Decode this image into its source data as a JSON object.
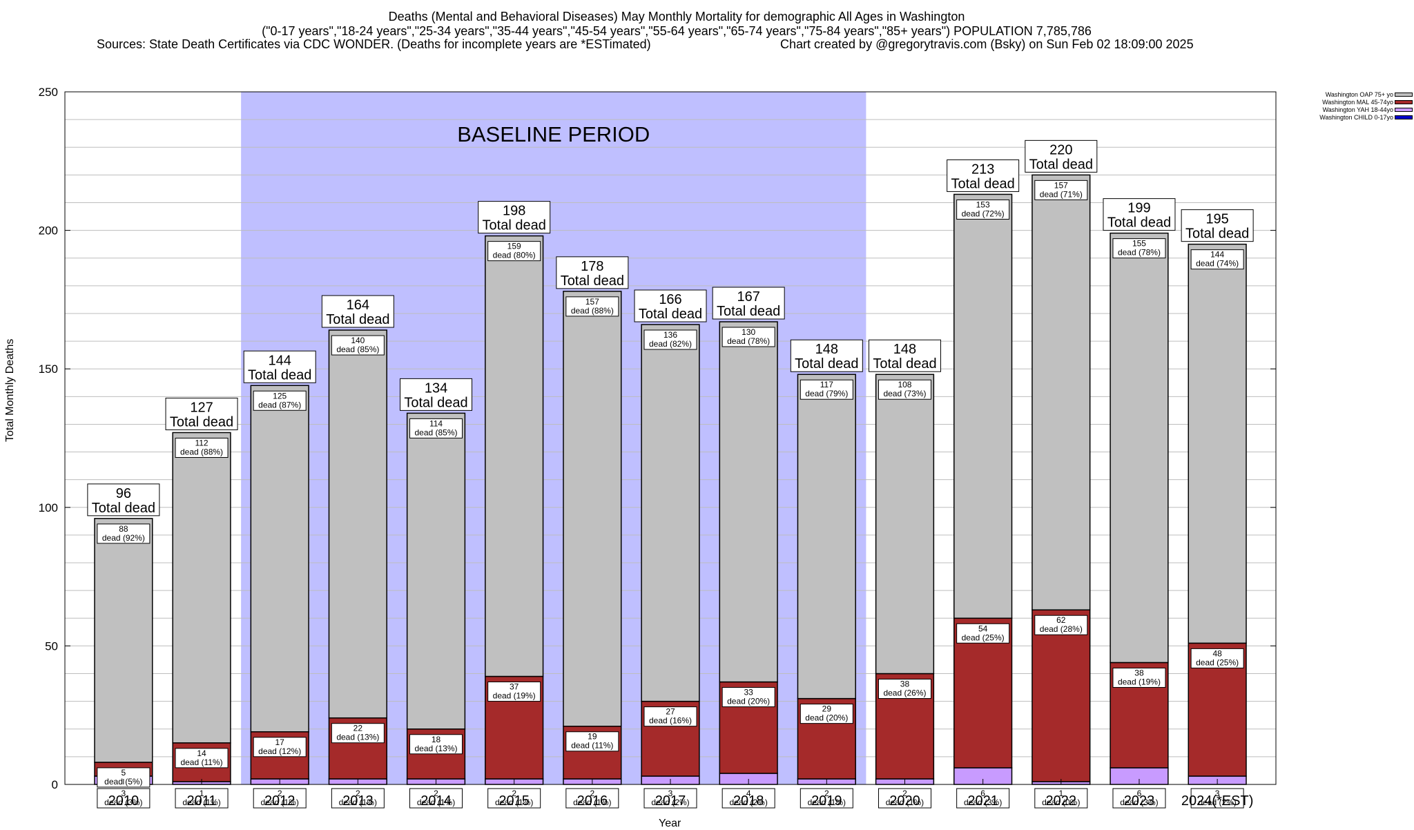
{
  "titles": {
    "line1": "Deaths (Mental and Behavioral Diseases) May Monthly Mortality for demographic All Ages in Washington",
    "line2": "(\"0-17 years\",\"18-24 years\",\"25-34 years\",\"35-44 years\",\"45-54 years\",\"55-64 years\",\"65-74 years\",\"75-84 years\",\"85+ years\") POPULATION 7,785,786",
    "sources": "Sources: State Death Certificates via CDC WONDER. (Deaths for incomplete years are *ESTimated)",
    "credit": "Chart created by @gregorytravis.com (Bsky) on Sun Feb 02 18:09:00 2025"
  },
  "chart_data": {
    "type": "bar",
    "stacked": true,
    "ylabel": "Total Monthly Deaths",
    "xlabel": "Year",
    "ylim": [
      0,
      250
    ],
    "y_ticks": [
      0,
      50,
      100,
      150,
      200,
      250
    ],
    "grid": true,
    "legend_position": "top-right",
    "baseline_label": "BASELINE PERIOD",
    "baseline_range": [
      "2012",
      "2019"
    ],
    "total_label_suffix": "Total dead",
    "segment_label_word": "dead",
    "categories": [
      "2010",
      "2011",
      "2012",
      "2013",
      "2014",
      "2015",
      "2016",
      "2017",
      "2018",
      "2019",
      "2020",
      "2021",
      "2022",
      "2023",
      "2024(*EST)"
    ],
    "totals": [
      96,
      127,
      144,
      164,
      134,
      198,
      178,
      166,
      167,
      148,
      148,
      213,
      220,
      199,
      195
    ],
    "series": [
      {
        "name": "Washington CHILD 0-17yo",
        "color": "#0000cc",
        "values": [
          0,
          0,
          0,
          0,
          0,
          0,
          0,
          0,
          0,
          0,
          0,
          0,
          0,
          0,
          0
        ]
      },
      {
        "name": "Washington YAH 18-44yo",
        "color": "#c89bff",
        "values": [
          3,
          1,
          2,
          2,
          2,
          2,
          2,
          3,
          4,
          2,
          2,
          6,
          1,
          6,
          3
        ],
        "pct": [
          "3%",
          "1%",
          "1%",
          "1%",
          "1%",
          "1%",
          "1%",
          "2%",
          "2%",
          "1%",
          "1%",
          "3%",
          "0%",
          "3%",
          "2%"
        ]
      },
      {
        "name": "Washington MAL 45-74yo",
        "color": "#a52a2a",
        "values": [
          5,
          14,
          17,
          22,
          18,
          37,
          19,
          27,
          33,
          29,
          38,
          54,
          62,
          38,
          48
        ],
        "pct": [
          "5%",
          "11%",
          "12%",
          "13%",
          "13%",
          "19%",
          "11%",
          "16%",
          "20%",
          "20%",
          "26%",
          "25%",
          "28%",
          "19%",
          "25%"
        ]
      },
      {
        "name": "Washington OAP 75+ yo",
        "color": "#c0c0c0",
        "values": [
          88,
          112,
          125,
          140,
          114,
          159,
          157,
          136,
          130,
          117,
          108,
          153,
          157,
          155,
          144
        ],
        "pct": [
          "92%",
          "88%",
          "87%",
          "85%",
          "85%",
          "80%",
          "88%",
          "82%",
          "78%",
          "79%",
          "73%",
          "72%",
          "71%",
          "78%",
          "74%"
        ]
      }
    ]
  }
}
